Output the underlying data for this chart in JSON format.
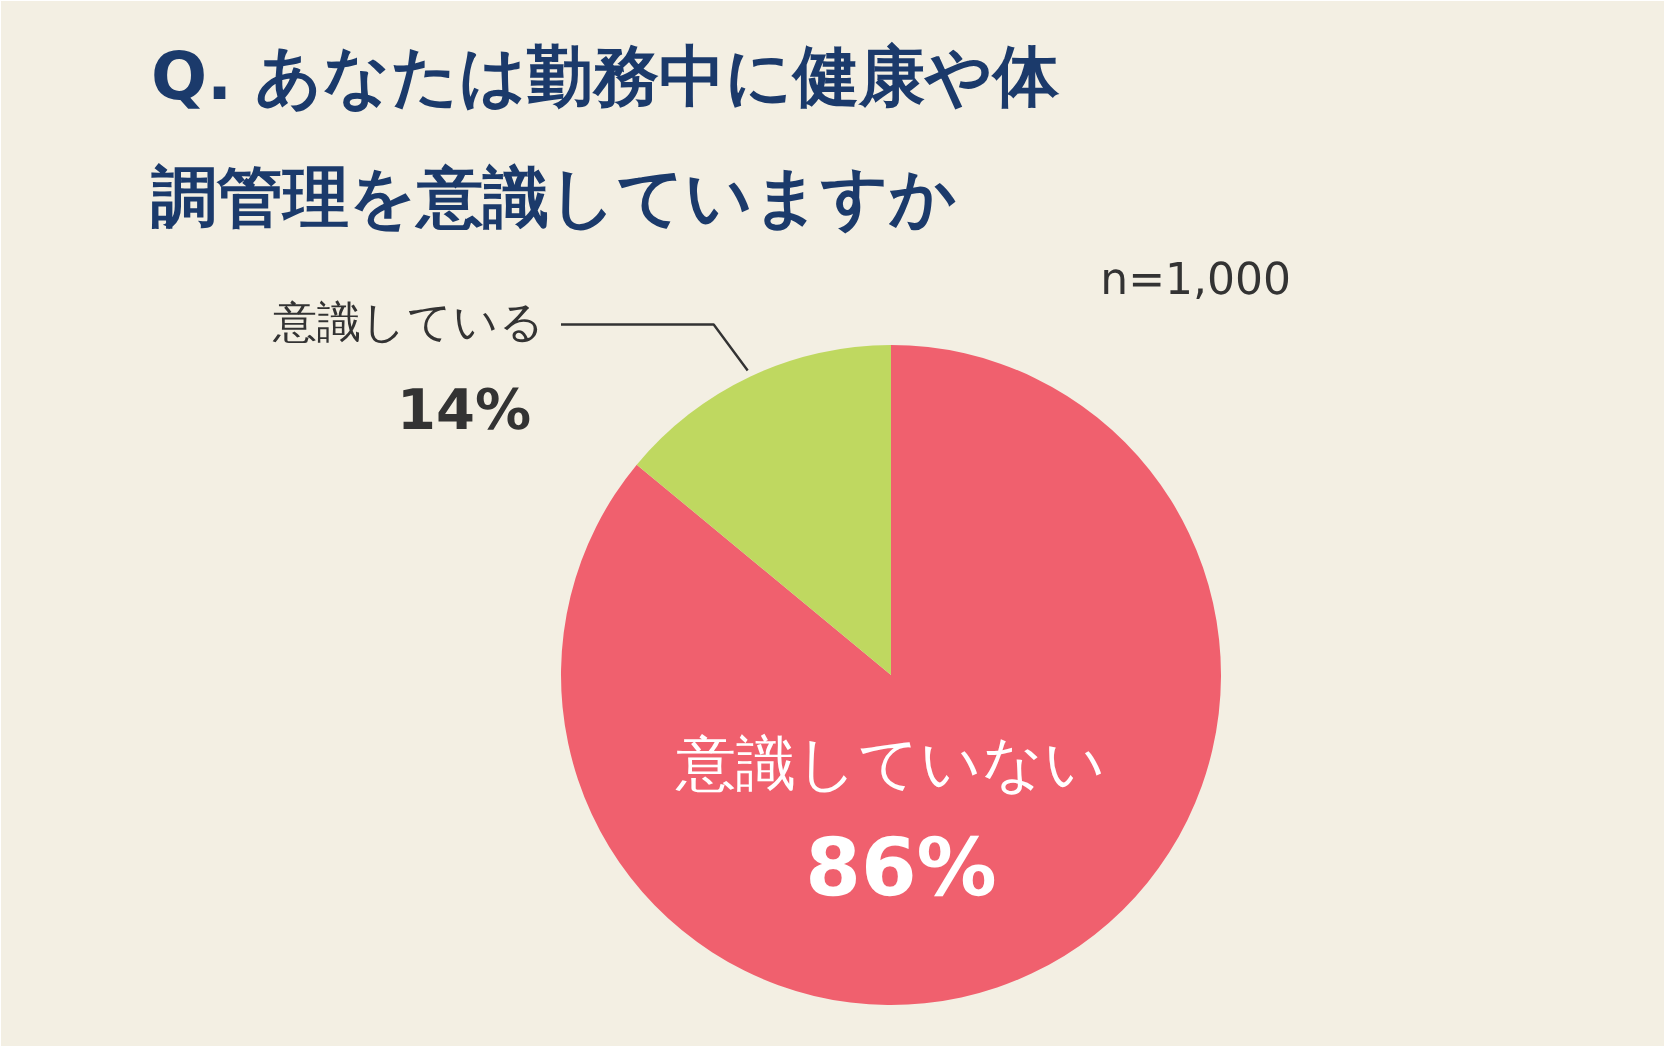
{
  "chart_data": {
    "type": "pie",
    "title": "Q. あなたは勤務中に健康や体調管理を意識していますか",
    "annotations": [
      "n=1,000"
    ],
    "categories": [
      "意識していない",
      "意識している"
    ],
    "values": [
      86,
      14
    ],
    "colors": [
      "#f0606e",
      "#bfd860"
    ],
    "value_labels": [
      "86%",
      "14%"
    ]
  }
}
